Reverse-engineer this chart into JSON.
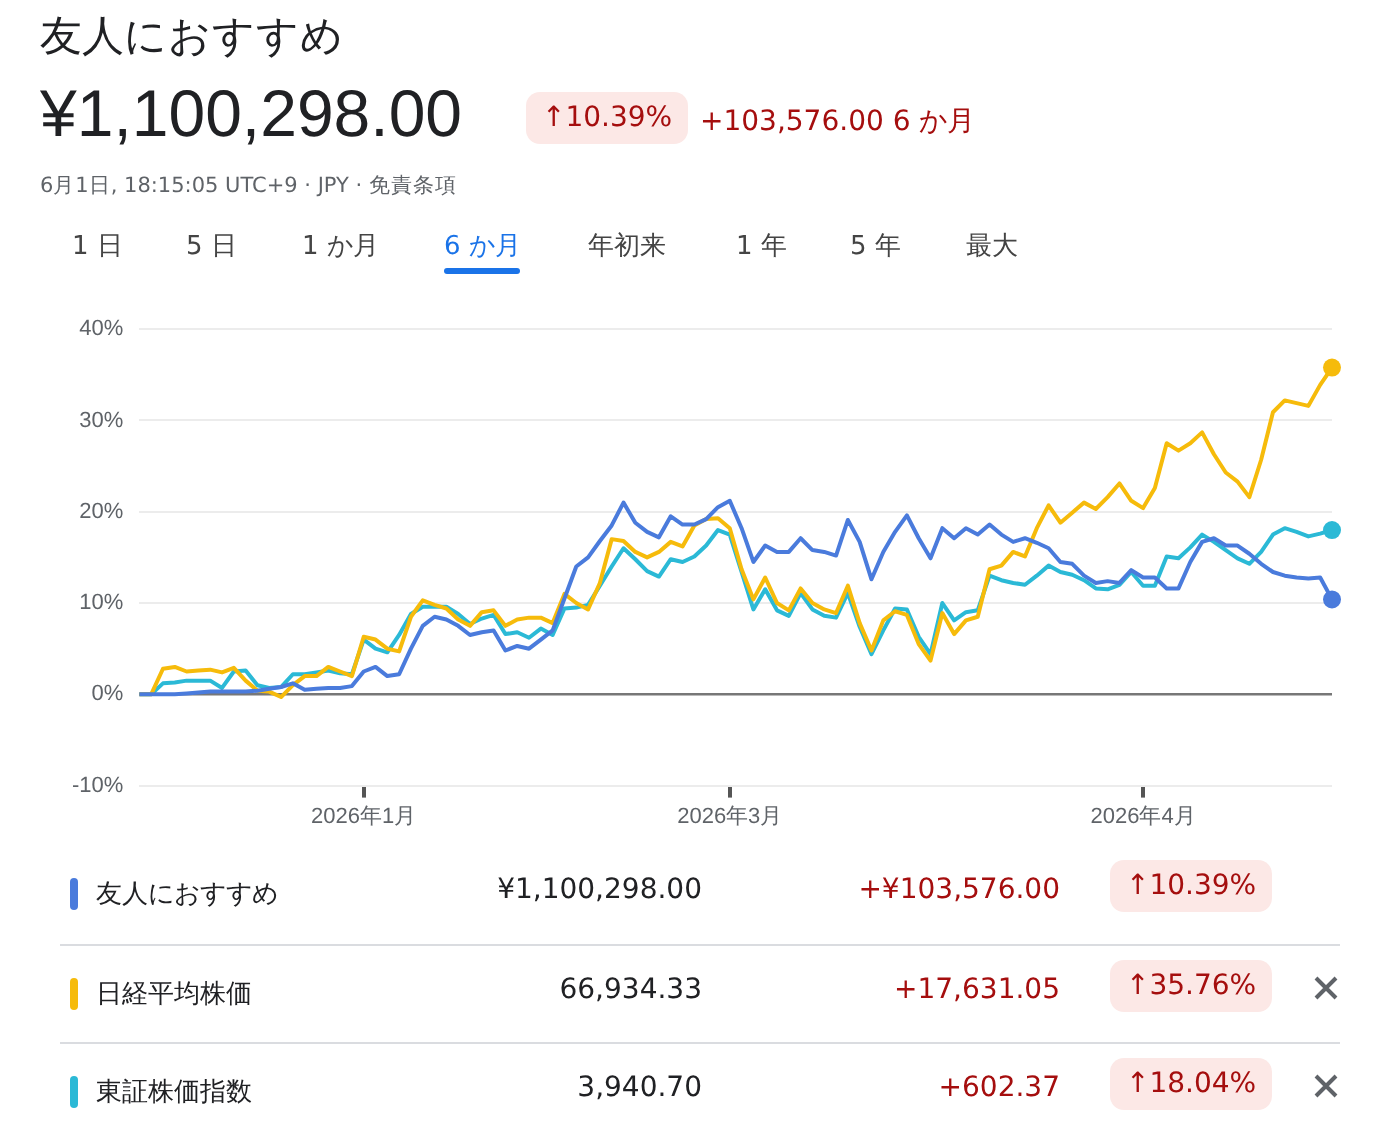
{
  "chart_data": {
    "type": "line",
    "title": "友人におすすめ",
    "categories": [
      null,
      null,
      null,
      null,
      null,
      null,
      null,
      null,
      null,
      null,
      null,
      null,
      null,
      null,
      null,
      null,
      null,
      null,
      null,
      "2026年1月",
      null,
      null,
      null,
      null,
      null,
      null,
      null,
      null,
      null,
      null,
      null,
      null,
      null,
      null,
      null,
      null,
      null,
      null,
      null,
      null,
      null,
      null,
      null,
      null,
      null,
      null,
      null,
      null,
      null,
      null,
      "2026年3月",
      null,
      null,
      null,
      null,
      null,
      null,
      null,
      null,
      null,
      null,
      null,
      null,
      null,
      null,
      null,
      null,
      null,
      null,
      null,
      null,
      null,
      null,
      null,
      null,
      null,
      null,
      null,
      null,
      null,
      null,
      null,
      null,
      null,
      null,
      "2026年4月",
      null,
      null,
      null,
      null,
      null,
      null,
      null,
      null,
      null,
      null,
      null,
      null,
      null,
      null,
      null,
      null
    ],
    "series": [
      {
        "name": "友人におすすめ",
        "color": "#4a7bdc",
        "values": [
          0,
          0,
          0,
          0,
          0.1,
          0.2,
          0.3,
          0.3,
          0.3,
          0.3,
          0.4,
          0.6,
          0.8,
          1.2,
          0.5,
          0.6,
          0.7,
          0.7,
          0.9,
          2.5,
          3.0,
          2.0,
          2.2,
          5.0,
          7.5,
          8.5,
          8.2,
          7.5,
          6.5,
          6.8,
          7.0,
          4.8,
          5.3,
          5.0,
          6.0,
          7.0,
          10.5,
          14.0,
          15.0,
          16.8,
          18.5,
          21.0,
          18.8,
          17.8,
          17.2,
          19.5,
          18.6,
          18.6,
          19.2,
          20.5,
          21.2,
          18.2,
          14.5,
          16.3,
          15.6,
          15.6,
          17.1,
          15.8,
          15.6,
          15.2,
          19.1,
          16.7,
          12.6,
          15.6,
          17.8,
          19.6,
          17.1,
          14.9,
          18.2,
          17.1,
          18.2,
          17.5,
          18.6,
          17.5,
          16.7,
          17.1,
          16.6,
          16.0,
          14.5,
          14.3,
          13.0,
          12.2,
          12.4,
          12.2,
          13.6,
          12.8,
          12.8,
          11.6,
          11.6,
          14.5,
          16.7,
          17.1,
          16.3,
          16.3,
          15.4,
          14.3,
          13.4,
          13.0,
          12.8,
          12.7,
          12.8,
          10.4
        ]
      },
      {
        "name": "日経平均株価",
        "color": "#f6bb0b",
        "values": [
          0,
          0,
          2.8,
          3.0,
          2.5,
          2.6,
          2.7,
          2.4,
          2.9,
          1.5,
          0.4,
          0.3,
          -0.3,
          1.0,
          2.0,
          2.0,
          3.0,
          2.5,
          2.0,
          6.3,
          6.0,
          5.0,
          4.7,
          8.5,
          10.3,
          9.8,
          9.4,
          8.2,
          7.5,
          9.0,
          9.2,
          7.5,
          8.2,
          8.4,
          8.4,
          7.8,
          11.0,
          10.0,
          9.3,
          12.2,
          17.0,
          16.8,
          15.6,
          15.0,
          15.6,
          16.7,
          16.2,
          18.5,
          19.2,
          19.3,
          18.2,
          13.7,
          10.4,
          12.8,
          10.0,
          9.2,
          11.6,
          10.0,
          9.3,
          8.9,
          11.9,
          7.8,
          4.8,
          8.1,
          9.1,
          8.7,
          5.5,
          3.7,
          8.9,
          6.6,
          8.1,
          8.5,
          13.7,
          14.1,
          15.6,
          15.1,
          18.2,
          20.7,
          18.8,
          19.9,
          21.0,
          20.3,
          21.6,
          23.1,
          21.2,
          20.4,
          22.6,
          27.5,
          26.7,
          27.5,
          28.7,
          26.3,
          24.3,
          23.3,
          21.6,
          25.7,
          30.9,
          32.2,
          31.9,
          31.6,
          33.9,
          35.8
        ]
      },
      {
        "name": "東証株価指数",
        "color": "#2bb9d6",
        "values": [
          0,
          0,
          1.2,
          1.3,
          1.5,
          1.5,
          1.5,
          0.7,
          2.5,
          2.6,
          1.0,
          0.7,
          0.8,
          2.2,
          2.2,
          2.4,
          2.6,
          2.3,
          2.2,
          6.0,
          5.0,
          4.6,
          6.5,
          8.8,
          9.6,
          9.6,
          9.6,
          8.8,
          7.7,
          8.3,
          8.7,
          6.6,
          6.8,
          6.2,
          7.2,
          6.5,
          9.4,
          9.5,
          9.8,
          11.9,
          14.0,
          16.0,
          14.8,
          13.5,
          12.9,
          14.8,
          14.5,
          15.1,
          16.3,
          18.0,
          17.5,
          13.4,
          9.3,
          11.5,
          9.2,
          8.6,
          11.1,
          9.3,
          8.6,
          8.4,
          11.1,
          7.4,
          4.4,
          7.0,
          9.4,
          9.3,
          6.3,
          4.4,
          10.0,
          8.1,
          9.0,
          9.2,
          13.0,
          12.5,
          12.2,
          12.0,
          13.0,
          14.1,
          13.4,
          13.1,
          12.5,
          11.6,
          11.5,
          12.0,
          13.4,
          11.9,
          11.9,
          15.1,
          14.9,
          16.1,
          17.5,
          16.7,
          15.8,
          14.9,
          14.3,
          15.6,
          17.5,
          18.2,
          17.8,
          17.3,
          17.6,
          18.0
        ]
      }
    ],
    "ylim": [
      -10,
      40
    ],
    "yticks": [
      {
        "value": -10,
        "label": "-10%"
      },
      {
        "value": 0,
        "label": "0%"
      },
      {
        "value": 10,
        "label": "10%"
      },
      {
        "value": 20,
        "label": "20%"
      },
      {
        "value": 30,
        "label": "30%"
      },
      {
        "value": 40,
        "label": "40%"
      }
    ],
    "grid": "y",
    "legend": "bottom",
    "line_style": "solid",
    "annotations": [
      "¥1,100,298.00",
      "↑10.39%",
      "+103,576.00 6 か月",
      "6月1日, 18:15:05 UTC+9 · JPY · 免責条項",
      "1 日",
      "5 日",
      "1 か月",
      "6 か月",
      "年初来",
      "1 年",
      "5 年",
      "最大",
      "¥1,100,298.00",
      "+¥103,576.00",
      "↑10.39%",
      "66,934.33",
      "+17,631.05",
      "↑35.76%",
      "3,940.70",
      "+602.37",
      "↑18.04%"
    ]
  }
}
